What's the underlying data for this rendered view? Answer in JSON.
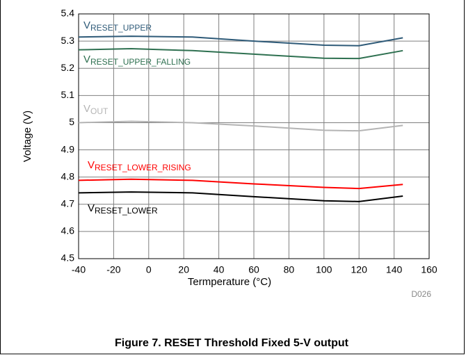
{
  "chart_data": {
    "type": "line",
    "title": "Figure 7. RESET Threshold Fixed 5-V output",
    "x_label": "Termperature (°C)",
    "y_label": "Voltage (V)",
    "note": "D026",
    "x": [
      -40,
      -10,
      25,
      60,
      100,
      120,
      145
    ],
    "series": [
      {
        "name": "V",
        "subscript": "RESET_UPPER",
        "color": "#2e5a78",
        "values": [
          5.315,
          5.318,
          5.315,
          5.3,
          5.285,
          5.283,
          5.312
        ]
      },
      {
        "name": "V",
        "subscript": "RESET_UPPER_FALLING",
        "color": "#2e7050",
        "values": [
          5.268,
          5.272,
          5.265,
          5.252,
          5.237,
          5.236,
          5.265
        ]
      },
      {
        "name": "V",
        "subscript": "OUT",
        "color": "#b4b4b4",
        "values": [
          5.0,
          5.005,
          5.0,
          4.988,
          4.972,
          4.97,
          4.99
        ]
      },
      {
        "name": "V",
        "subscript": "RESET_LOWER_RISING",
        "color": "#ff0000",
        "values": [
          4.788,
          4.792,
          4.788,
          4.775,
          4.762,
          4.758,
          4.773
        ]
      },
      {
        "name": "V",
        "subscript": "RESET_LOWER",
        "color": "#000000",
        "values": [
          4.742,
          4.745,
          4.742,
          4.728,
          4.713,
          4.71,
          4.73
        ]
      }
    ],
    "xlim": [
      -40,
      160
    ],
    "xticks": [
      -40,
      -20,
      0,
      20,
      40,
      60,
      80,
      100,
      120,
      140,
      160
    ],
    "ylim": [
      4.5,
      5.4
    ],
    "yticks": [
      4.5,
      4.6,
      4.7,
      4.8,
      4.9,
      5,
      5.1,
      5.2,
      5.3,
      5.4
    ],
    "grid": true
  }
}
